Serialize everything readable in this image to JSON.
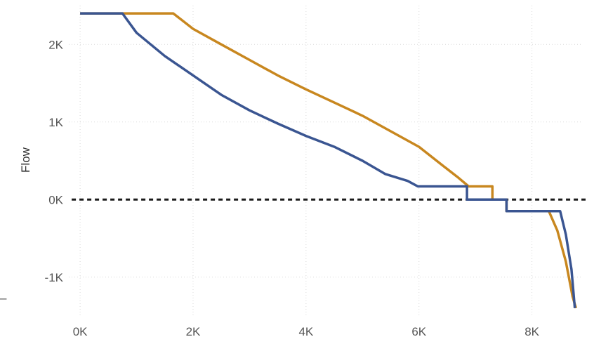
{
  "chart_data": {
    "type": "line",
    "title": "",
    "xlabel": "",
    "ylabel": "Flow",
    "xlim": [
      -200,
      8900
    ],
    "ylim": [
      -1500,
      2500
    ],
    "grid": true,
    "legend": "none",
    "x_ticks": [
      {
        "value": 0,
        "label": "0K"
      },
      {
        "value": 2000,
        "label": "2K"
      },
      {
        "value": 4000,
        "label": "4K"
      },
      {
        "value": 6000,
        "label": "6K"
      },
      {
        "value": 8000,
        "label": "8K"
      }
    ],
    "y_ticks": [
      {
        "value": -1000,
        "label": "-1K"
      },
      {
        "value": 0,
        "label": "0K"
      },
      {
        "value": 1000,
        "label": "1K"
      },
      {
        "value": 2000,
        "label": "2K"
      }
    ],
    "reference_line": {
      "axis": "y",
      "value": 0,
      "style": "dotted",
      "color": "#1a1a1a"
    },
    "series": [
      {
        "color": "#c8871f",
        "points": [
          [
            0,
            2400
          ],
          [
            1650,
            2400
          ],
          [
            2000,
            2200
          ],
          [
            2500,
            2000
          ],
          [
            3000,
            1800
          ],
          [
            3500,
            1600
          ],
          [
            4000,
            1420
          ],
          [
            4500,
            1250
          ],
          [
            5000,
            1080
          ],
          [
            5500,
            880
          ],
          [
            6000,
            680
          ],
          [
            6400,
            450
          ],
          [
            6700,
            280
          ],
          [
            6880,
            170
          ],
          [
            7300,
            170
          ],
          [
            7300,
            0
          ],
          [
            7550,
            0
          ],
          [
            7550,
            -150
          ],
          [
            8300,
            -150
          ],
          [
            8450,
            -400
          ],
          [
            8600,
            -800
          ],
          [
            8720,
            -1250
          ],
          [
            8780,
            -1400
          ]
        ]
      },
      {
        "color": "#3a5591",
        "points": [
          [
            0,
            2400
          ],
          [
            750,
            2400
          ],
          [
            1000,
            2150
          ],
          [
            1500,
            1850
          ],
          [
            2000,
            1600
          ],
          [
            2500,
            1350
          ],
          [
            3000,
            1150
          ],
          [
            3500,
            980
          ],
          [
            4000,
            820
          ],
          [
            4500,
            680
          ],
          [
            5000,
            500
          ],
          [
            5400,
            330
          ],
          [
            5800,
            240
          ],
          [
            5980,
            170
          ],
          [
            6850,
            170
          ],
          [
            6850,
            0
          ],
          [
            7550,
            0
          ],
          [
            7550,
            -150
          ],
          [
            8500,
            -150
          ],
          [
            8600,
            -450
          ],
          [
            8700,
            -900
          ],
          [
            8760,
            -1400
          ]
        ]
      }
    ]
  }
}
